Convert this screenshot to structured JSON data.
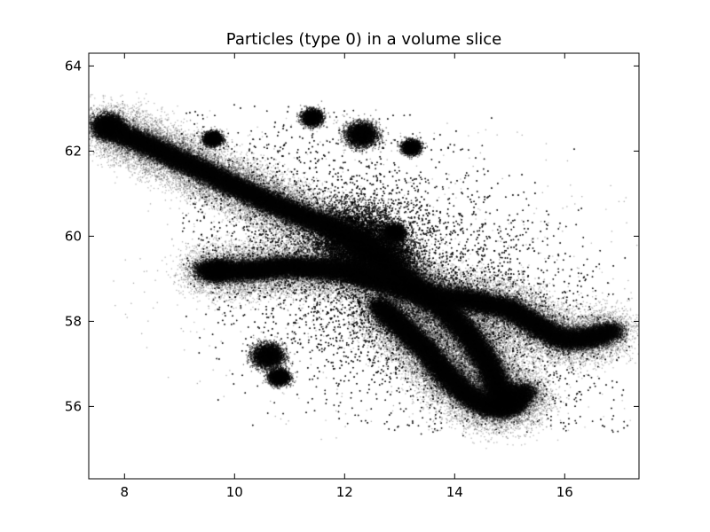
{
  "chart_data": {
    "type": "scatter",
    "title": "Particles (type 0) in a volume slice",
    "xlabel": "",
    "ylabel": "",
    "xlim": [
      7.35,
      17.35
    ],
    "ylim": [
      54.3,
      64.3
    ],
    "xticks": [
      8,
      10,
      12,
      14,
      16
    ],
    "yticks": [
      56,
      58,
      60,
      62,
      64
    ],
    "grid": false,
    "marker_color": "#000000",
    "features": {
      "halo": {
        "center": [
          12.8,
          59.0
        ],
        "x_range": [
          9.3,
          17.2
        ],
        "y_range": [
          55.3,
          63.1
        ],
        "orientation_deg": -38
      },
      "dense_filaments": [
        {
          "points": [
            [
              7.6,
              62.6
            ],
            [
              8.5,
              62.1
            ],
            [
              9.5,
              61.5
            ],
            [
              10.3,
              61.0
            ],
            [
              11.0,
              60.6
            ],
            [
              11.8,
              60.2
            ],
            [
              12.3,
              59.8
            ],
            [
              12.8,
              59.3
            ],
            [
              13.3,
              58.8
            ],
            [
              13.8,
              58.3
            ],
            [
              14.3,
              57.6
            ],
            [
              14.6,
              57.0
            ],
            [
              14.8,
              56.4
            ],
            [
              14.9,
              56.0
            ]
          ]
        },
        {
          "points": [
            [
              9.4,
              59.2
            ],
            [
              10.2,
              59.2
            ],
            [
              11.0,
              59.3
            ],
            [
              12.0,
              59.2
            ],
            [
              12.8,
              58.9
            ],
            [
              13.5,
              58.6
            ],
            [
              14.3,
              58.5
            ],
            [
              15.0,
              58.3
            ],
            [
              15.5,
              57.9
            ],
            [
              15.9,
              57.6
            ],
            [
              16.4,
              57.6
            ],
            [
              16.9,
              57.8
            ]
          ]
        },
        {
          "points": [
            [
              12.6,
              58.4
            ],
            [
              13.1,
              57.8
            ],
            [
              13.5,
              57.3
            ],
            [
              13.8,
              56.8
            ],
            [
              14.2,
              56.3
            ],
            [
              14.6,
              56.0
            ],
            [
              15.0,
              56.0
            ],
            [
              15.3,
              56.4
            ]
          ]
        }
      ],
      "clumps": [
        {
          "center": [
            7.7,
            62.6
          ],
          "size": 0.3
        },
        {
          "center": [
            12.2,
            59.9
          ],
          "size": 0.9
        },
        {
          "center": [
            12.6,
            59.5
          ],
          "size": 0.7
        },
        {
          "center": [
            12.3,
            62.4
          ],
          "size": 0.3
        },
        {
          "center": [
            11.4,
            62.8
          ],
          "size": 0.2
        },
        {
          "center": [
            9.6,
            62.3
          ],
          "size": 0.18
        },
        {
          "center": [
            13.2,
            62.1
          ],
          "size": 0.18
        },
        {
          "center": [
            10.6,
            57.2
          ],
          "size": 0.3
        },
        {
          "center": [
            10.8,
            56.7
          ],
          "size": 0.2
        },
        {
          "center": [
            12.9,
            60.1
          ],
          "size": 0.2
        },
        {
          "center": [
            14.9,
            56.2
          ],
          "size": 0.35
        },
        {
          "center": [
            9.7,
            59.2
          ],
          "size": 0.25
        }
      ]
    }
  }
}
